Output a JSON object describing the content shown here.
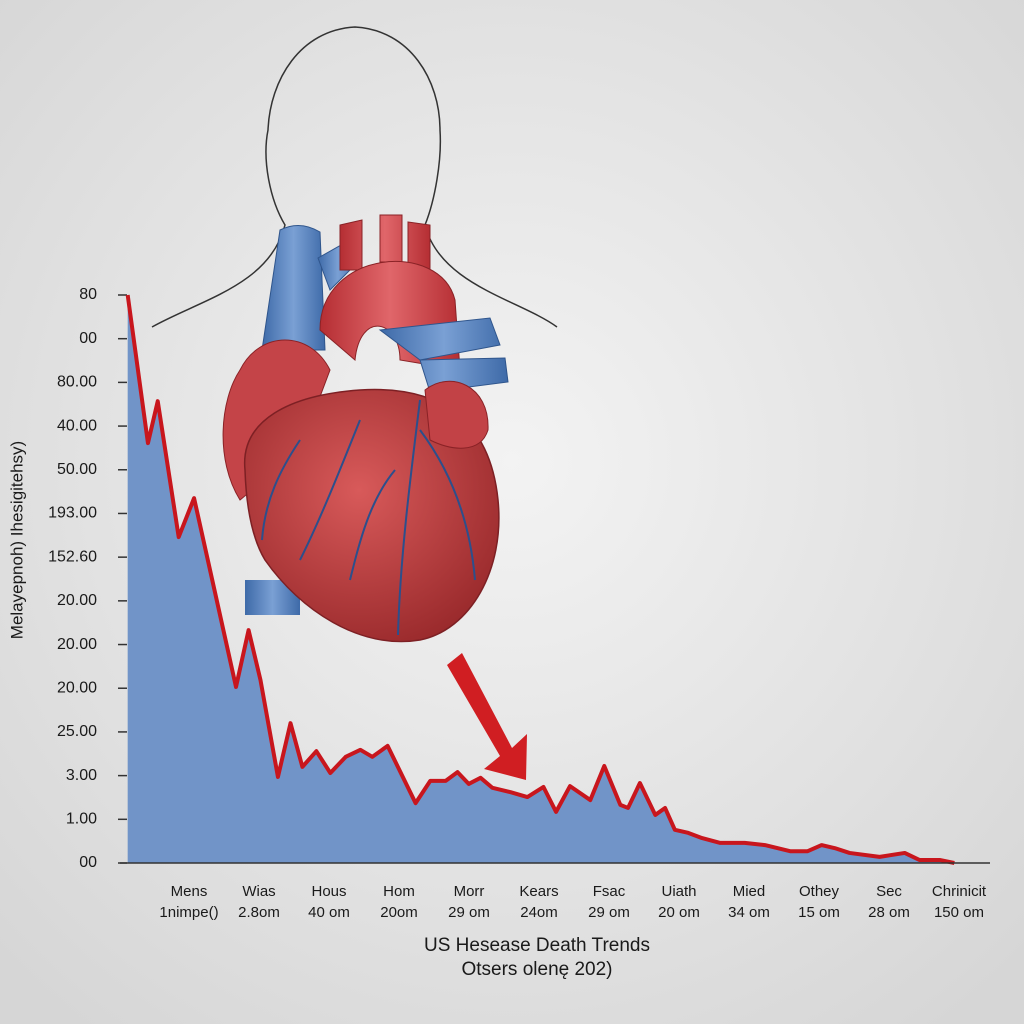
{
  "chart_data": {
    "type": "area",
    "title": "US Hesease Death Trends",
    "subtitle": "Otsers olenę 202)",
    "ylabel": "Melayepnoh)  Ihesigitehsy)",
    "categories": [
      "Mens",
      "Wias",
      "Hous",
      "Hom",
      "Morr",
      "Kears",
      "Fsac",
      "Uiath",
      "Mied",
      "Othey",
      "Sec",
      "Chrinicit"
    ],
    "category_sublabels": [
      "1nimpe()",
      "2.8om",
      "40 om",
      "20om",
      "29 om",
      "24om",
      "29 om",
      "20 om",
      "34 om",
      "15 om",
      "28 om",
      "150 om"
    ],
    "xlim": [
      -1,
      11.45
    ],
    "ylim": [
      0,
      13
    ],
    "yticks": [
      {
        "value": 0,
        "label": "00"
      },
      {
        "value": 1,
        "label": "1.00"
      },
      {
        "value": 2,
        "label": "3.00"
      },
      {
        "value": 3,
        "label": "25.00"
      },
      {
        "value": 4,
        "label": "20.00"
      },
      {
        "value": 5,
        "label": "20.00"
      },
      {
        "value": 6,
        "label": "20.00"
      },
      {
        "value": 7,
        "label": "152.60"
      },
      {
        "value": 8,
        "label": "193.00"
      },
      {
        "value": 9,
        "label": "50.00"
      },
      {
        "value": 10,
        "label": "40.00"
      },
      {
        "value": 11,
        "label": "80.00"
      },
      {
        "value": 12,
        "label": "00"
      },
      {
        "value": 13,
        "label": "80"
      }
    ],
    "line_color": "#c8161d",
    "fill_color": "#6a8fc6",
    "x": [
      -0.89,
      -0.6,
      -0.46,
      -0.16,
      0.06,
      0.66,
      0.84,
      1.01,
      1.26,
      1.44,
      1.61,
      1.81,
      2.01,
      2.23,
      2.44,
      2.61,
      2.83,
      3.23,
      3.44,
      3.66,
      3.83,
      3.99,
      4.16,
      4.33,
      4.59,
      4.83,
      5.06,
      5.24,
      5.44,
      5.73,
      5.93,
      6.16,
      6.27,
      6.44,
      6.66,
      6.8,
      6.94,
      7.13,
      7.33,
      7.59,
      7.94,
      8.23,
      8.59,
      8.84,
      9.04,
      9.23,
      9.44,
      9.87,
      10.23,
      10.44,
      10.73,
      10.94
    ],
    "values": [
      13,
      9.61,
      10.57,
      7.46,
      8.35,
      4.03,
      5.33,
      4.19,
      1.97,
      3.2,
      2.2,
      2.56,
      2.06,
      2.43,
      2.59,
      2.43,
      2.68,
      1.37,
      1.88,
      1.88,
      2.08,
      1.81,
      1.95,
      1.72,
      1.62,
      1.51,
      1.74,
      1.17,
      1.76,
      1.44,
      2.22,
      1.33,
      1.26,
      1.83,
      1.1,
      1.26,
      0.76,
      0.69,
      0.57,
      0.46,
      0.46,
      0.41,
      0.27,
      0.27,
      0.41,
      0.34,
      0.23,
      0.14,
      0.23,
      0.07,
      0.07,
      0
    ]
  }
}
